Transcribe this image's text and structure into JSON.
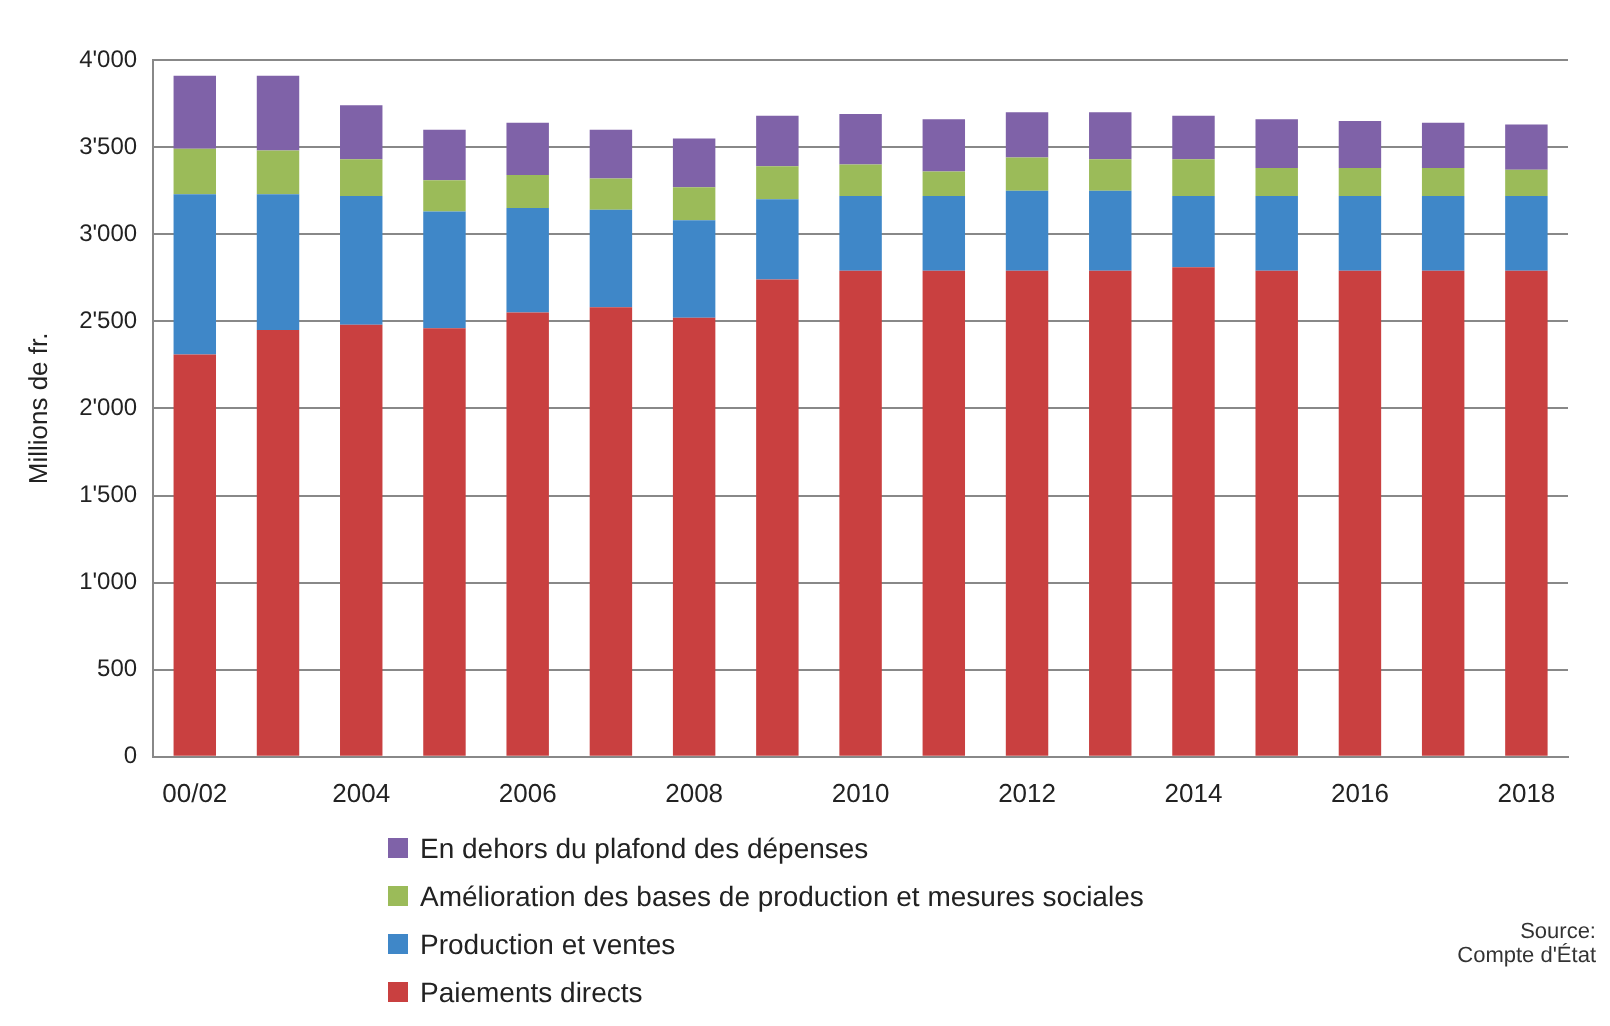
{
  "chart_data": {
    "type": "bar",
    "stacked": true,
    "ylabel": "Millions de fr.",
    "categories": [
      "00/02",
      null,
      "2004",
      null,
      "2006",
      null,
      "2008",
      null,
      "2010",
      null,
      "2012",
      null,
      "2014",
      null,
      "2016",
      null,
      "2018"
    ],
    "series": [
      {
        "name": "Paiements directs",
        "color": "#c94040",
        "values": [
          2310,
          2450,
          2480,
          2460,
          2550,
          2580,
          2520,
          2740,
          2790,
          2790,
          2790,
          2790,
          2810,
          2790,
          2790,
          2790,
          2790
        ]
      },
      {
        "name": "Production et ventes",
        "color": "#3f87c8",
        "values": [
          920,
          780,
          740,
          670,
          600,
          560,
          560,
          460,
          430,
          430,
          460,
          460,
          410,
          430,
          430,
          430,
          430
        ]
      },
      {
        "name": "Amélioration des bases de production et mesures sociales",
        "color": "#9bbb59",
        "values": [
          260,
          250,
          210,
          180,
          190,
          180,
          190,
          190,
          180,
          140,
          190,
          180,
          210,
          160,
          160,
          160,
          150
        ]
      },
      {
        "name": "En dehors du plafond des dépenses",
        "color": "#7f62a8",
        "values": [
          420,
          430,
          310,
          290,
          300,
          280,
          280,
          290,
          290,
          300,
          260,
          270,
          250,
          280,
          270,
          260,
          260
        ]
      }
    ],
    "ylim": [
      0,
      4000
    ],
    "yticks": [
      0,
      500,
      {
        "value": 1000,
        "label": "1'000"
      },
      {
        "value": 1500,
        "label": "1'500"
      },
      {
        "value": 2000,
        "label": "2'000"
      },
      {
        "value": 2500,
        "label": "2'500"
      },
      {
        "value": 3000,
        "label": "3'000"
      },
      {
        "value": 3500,
        "label": "3'500"
      },
      {
        "value": 4000,
        "label": "4'000"
      }
    ],
    "grid": "y",
    "legend": "bottom",
    "annotations": [
      "Source:\nCompte d'État"
    ]
  }
}
